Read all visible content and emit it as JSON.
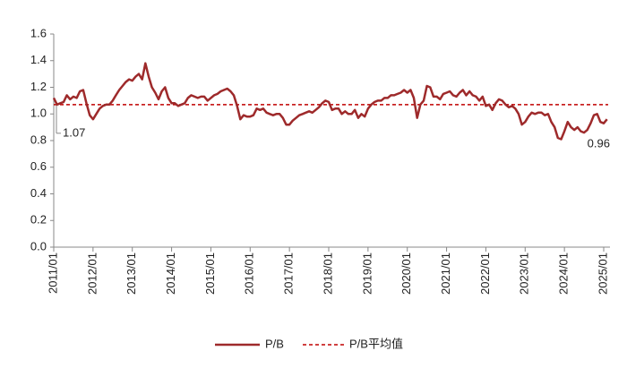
{
  "chart_data": {
    "type": "line",
    "categories": [
      "2011/01",
      null,
      null,
      null,
      null,
      null,
      null,
      null,
      null,
      null,
      null,
      null,
      "2012/01",
      null,
      null,
      null,
      null,
      null,
      null,
      null,
      null,
      null,
      null,
      null,
      "2013/01",
      null,
      null,
      null,
      null,
      null,
      null,
      null,
      null,
      null,
      null,
      null,
      "2014/01",
      null,
      null,
      null,
      null,
      null,
      null,
      null,
      null,
      null,
      null,
      null,
      "2015/01",
      null,
      null,
      null,
      null,
      null,
      null,
      null,
      null,
      null,
      null,
      null,
      "2016/01",
      null,
      null,
      null,
      null,
      null,
      null,
      null,
      null,
      null,
      null,
      null,
      "2017/01",
      null,
      null,
      null,
      null,
      null,
      null,
      null,
      null,
      null,
      null,
      null,
      "2018/01",
      null,
      null,
      null,
      null,
      null,
      null,
      null,
      null,
      null,
      null,
      null,
      "2019/01",
      null,
      null,
      null,
      null,
      null,
      null,
      null,
      null,
      null,
      null,
      null,
      "2020/01",
      null,
      null,
      null,
      null,
      null,
      null,
      null,
      null,
      null,
      null,
      null,
      "2021/01",
      null,
      null,
      null,
      null,
      null,
      null,
      null,
      null,
      null,
      null,
      null,
      "2022/01",
      null,
      null,
      null,
      null,
      null,
      null,
      null,
      null,
      null,
      null,
      null,
      "2023/01",
      null,
      null,
      null,
      null,
      null,
      null,
      null,
      null,
      null,
      null,
      null,
      "2024/01",
      null,
      null,
      null,
      null,
      null,
      null,
      null,
      null,
      null,
      null,
      null,
      "2025/01",
      null
    ],
    "series": [
      {
        "name": "P/B",
        "color": "#9e2a2b",
        "values": [
          1.12,
          1.07,
          1.08,
          1.09,
          1.14,
          1.11,
          1.13,
          1.12,
          1.17,
          1.18,
          1.08,
          0.99,
          0.96,
          1.0,
          1.04,
          1.06,
          1.07,
          1.07,
          1.1,
          1.14,
          1.18,
          1.21,
          1.24,
          1.26,
          1.25,
          1.28,
          1.3,
          1.26,
          1.38,
          1.28,
          1.2,
          1.16,
          1.11,
          1.17,
          1.2,
          1.12,
          1.08,
          1.08,
          1.06,
          1.07,
          1.08,
          1.12,
          1.14,
          1.13,
          1.12,
          1.13,
          1.13,
          1.1,
          1.12,
          1.14,
          1.15,
          1.17,
          1.18,
          1.19,
          1.17,
          1.14,
          1.06,
          0.96,
          0.99,
          0.98,
          0.98,
          0.99,
          1.04,
          1.03,
          1.04,
          1.01,
          1.0,
          0.99,
          1.0,
          1.0,
          0.97,
          0.92,
          0.92,
          0.95,
          0.97,
          0.99,
          1.0,
          1.01,
          1.02,
          1.01,
          1.03,
          1.05,
          1.08,
          1.1,
          1.09,
          1.03,
          1.04,
          1.04,
          1.0,
          1.02,
          1.0,
          1.0,
          1.03,
          0.97,
          1.0,
          0.98,
          1.04,
          1.07,
          1.09,
          1.1,
          1.1,
          1.12,
          1.12,
          1.14,
          1.14,
          1.15,
          1.16,
          1.18,
          1.16,
          1.18,
          1.12,
          0.97,
          1.07,
          1.1,
          1.21,
          1.2,
          1.13,
          1.13,
          1.11,
          1.15,
          1.16,
          1.17,
          1.14,
          1.13,
          1.16,
          1.18,
          1.14,
          1.17,
          1.14,
          1.13,
          1.1,
          1.13,
          1.06,
          1.07,
          1.03,
          1.08,
          1.11,
          1.1,
          1.07,
          1.05,
          1.06,
          1.04,
          1.0,
          0.92,
          0.94,
          0.98,
          1.01,
          1.0,
          1.01,
          1.01,
          0.99,
          1.0,
          0.94,
          0.9,
          0.82,
          0.81,
          0.87,
          0.94,
          0.9,
          0.88,
          0.9,
          0.87,
          0.86,
          0.88,
          0.93,
          0.99,
          1.0,
          0.94,
          0.93,
          0.96
        ]
      }
    ],
    "mean_line": {
      "name": "P/B平均值",
      "value": 1.07,
      "color": "#c00000"
    },
    "ylim": [
      0,
      1.6
    ],
    "yticks": [
      {
        "value": 0,
        "label": "0.0"
      },
      {
        "value": 0.2,
        "label": "0.2"
      },
      {
        "value": 0.4,
        "label": "0.4"
      },
      {
        "value": 0.6,
        "label": "0.6"
      },
      {
        "value": 0.8,
        "label": "0.8"
      },
      {
        "value": 1.0,
        "label": "1.0"
      },
      {
        "value": 1.2,
        "label": "1.2"
      },
      {
        "value": 1.4,
        "label": "1.4"
      },
      {
        "value": 1.6,
        "label": "1.6"
      }
    ],
    "grid": false
  }
}
